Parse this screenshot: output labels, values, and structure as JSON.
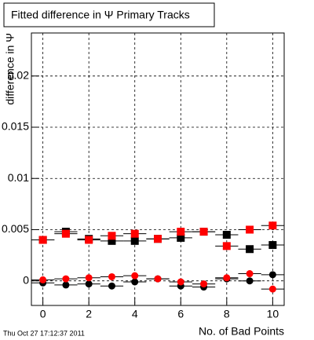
{
  "chart_data": {
    "type": "scatter",
    "title": "Fitted difference in Ψ  Primary Tracks",
    "y_label": "difference in Ψ",
    "x_label": "No. of Bad Points",
    "timestamp": "Thu Oct 27 17:12:37 2011",
    "x": [
      0,
      1,
      2,
      3,
      4,
      5,
      6,
      7,
      8,
      9,
      10
    ],
    "x_error": 0.5,
    "series": [
      {
        "color": "#000000",
        "marker": "square",
        "values": [
          0.004,
          0.0048,
          0.0041,
          0.0039,
          0.0039,
          0.0041,
          0.0042,
          0.0048,
          0.0045,
          0.0031,
          0.0035
        ]
      },
      {
        "color": "#ff0000",
        "marker": "square",
        "values": [
          0.004,
          0.0046,
          0.004,
          0.0044,
          0.0046,
          0.0041,
          0.0048,
          0.0048,
          0.0034,
          0.005,
          0.0054
        ]
      },
      {
        "color": "#000000",
        "marker": "circle",
        "values": [
          -0.0002,
          -0.0004,
          -0.0003,
          -0.0005,
          -0.0001,
          0.0002,
          -0.0005,
          -0.0006,
          0.0002,
          0.0,
          0.0006
        ]
      },
      {
        "color": "#ff0000",
        "marker": "circle",
        "values": [
          0.0001,
          0.0002,
          0.0003,
          0.0004,
          0.0005,
          0.0002,
          -0.0001,
          -0.0003,
          0.0003,
          0.0007,
          -0.0008
        ]
      }
    ],
    "xlim": [
      -0.5,
      10.5
    ],
    "ylim": [
      -0.0024,
      0.0242
    ],
    "xticks": [
      0,
      2,
      4,
      6,
      8,
      10
    ],
    "yticks": [
      0,
      0.005,
      0.01,
      0.015,
      0.02
    ],
    "grid": true
  }
}
